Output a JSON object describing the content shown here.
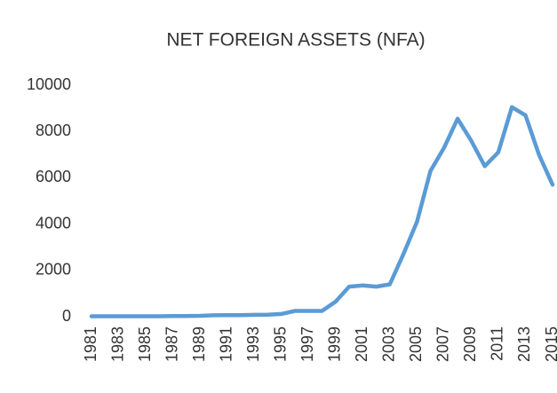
{
  "chart_data": {
    "type": "line",
    "title": "NET FOREIGN ASSETS (NFA)",
    "x": [
      1981,
      1982,
      1983,
      1984,
      1985,
      1986,
      1987,
      1988,
      1989,
      1990,
      1991,
      1992,
      1993,
      1994,
      1995,
      1996,
      1997,
      1998,
      1999,
      2000,
      2001,
      2002,
      2003,
      2004,
      2005,
      2006,
      2007,
      2008,
      2009,
      2010,
      2011,
      2012,
      2013,
      2014,
      2015
    ],
    "values": [
      20,
      20,
      20,
      20,
      20,
      20,
      25,
      30,
      40,
      60,
      70,
      70,
      80,
      90,
      120,
      250,
      250,
      250,
      650,
      1300,
      1350,
      1300,
      1400,
      2700,
      4100,
      6300,
      7300,
      8550,
      7600,
      6500,
      7100,
      9050,
      8700,
      7000,
      5700
    ],
    "color": "#5b9bd5",
    "xlim": [
      1981,
      2015
    ],
    "xticks": [
      1981,
      1983,
      1985,
      1987,
      1989,
      1991,
      1993,
      1995,
      1997,
      1999,
      2001,
      2003,
      2005,
      2007,
      2009,
      2011,
      2013,
      2015
    ],
    "ylim": [
      0,
      10000
    ],
    "yticks": [
      0,
      2000,
      4000,
      6000,
      8000,
      10000
    ],
    "grid": false
  }
}
